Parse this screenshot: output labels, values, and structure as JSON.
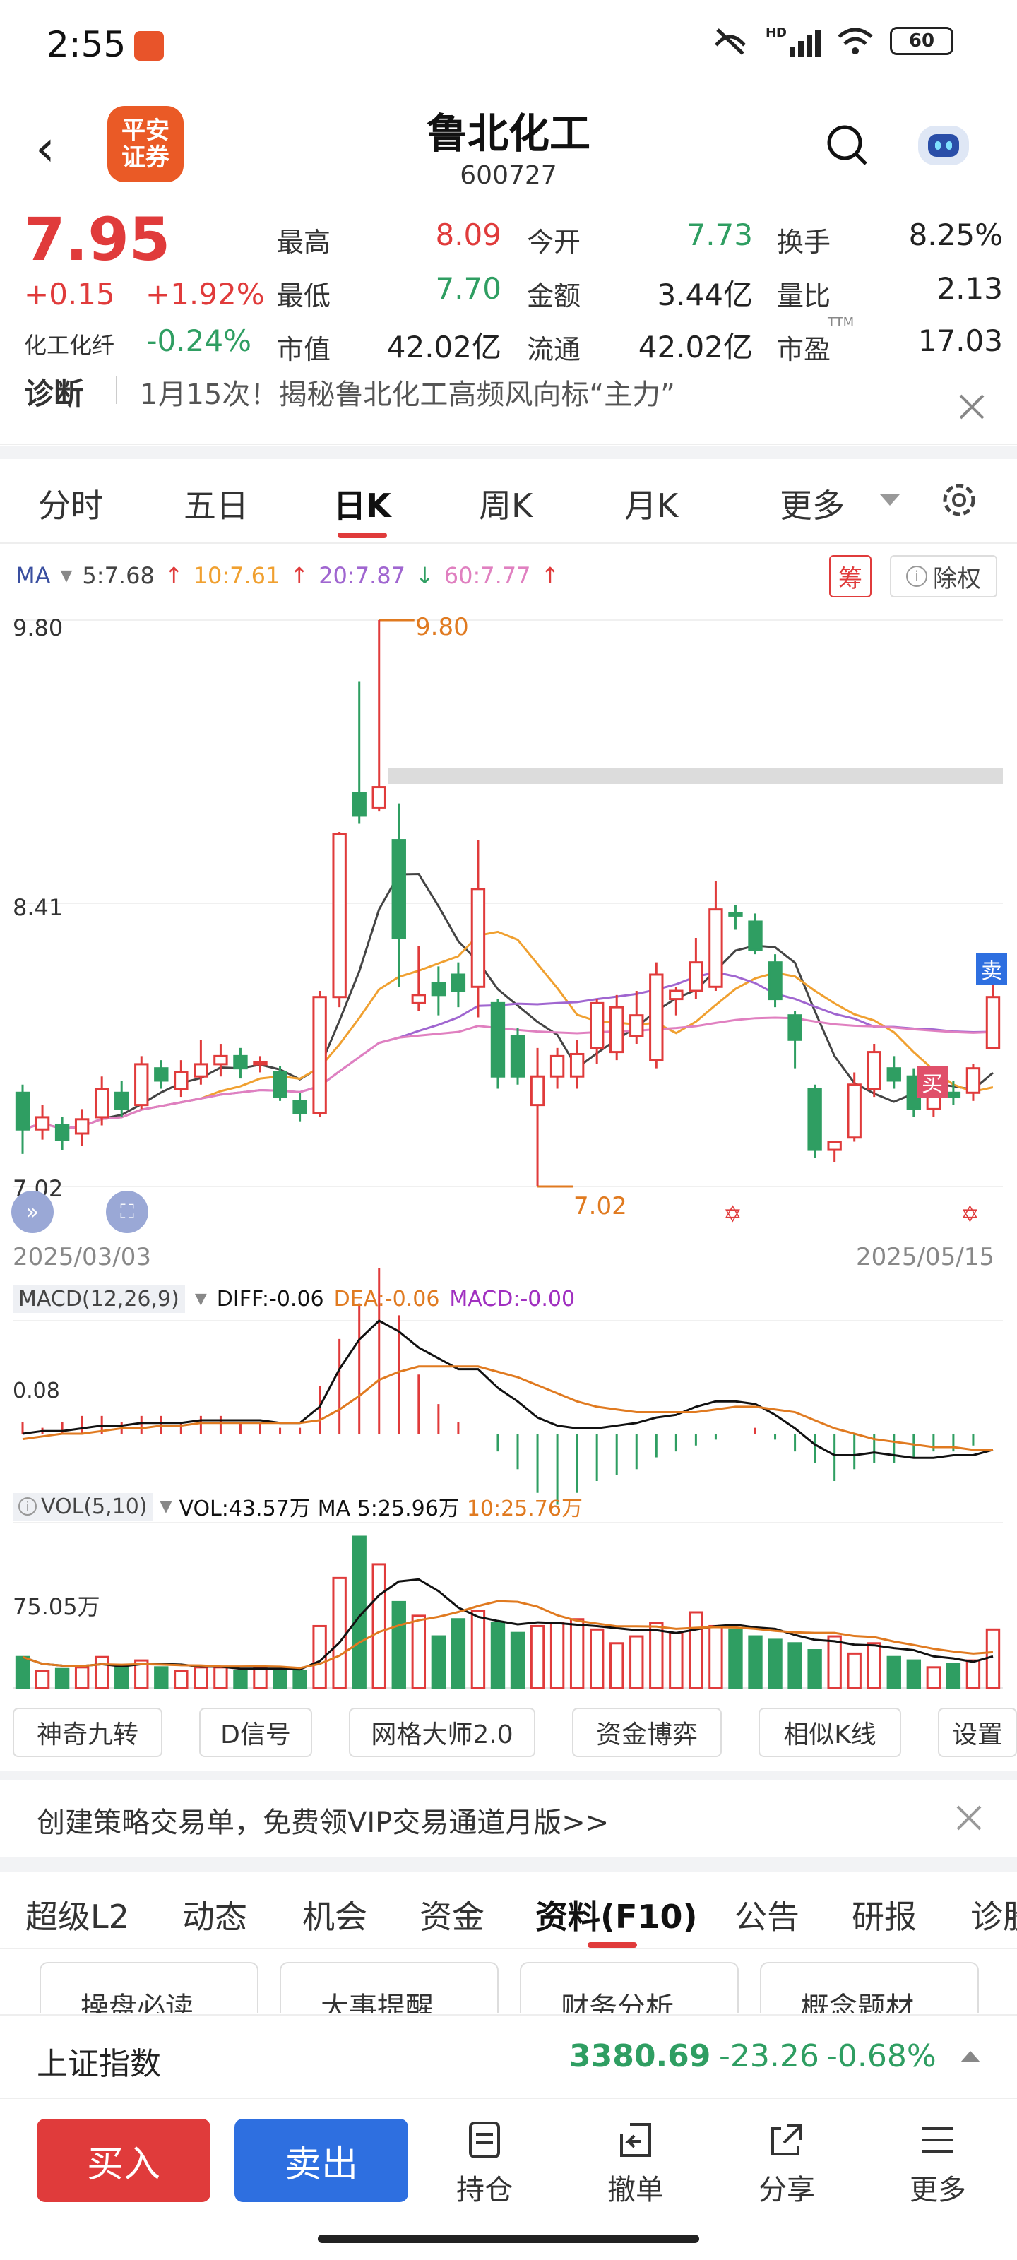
{
  "status": {
    "time": "2:55",
    "signal": "HD",
    "battery": "60"
  },
  "header": {
    "title": "鲁北化工",
    "code": "600727",
    "logo_line1": "平安",
    "logo_line2": "证券"
  },
  "quote": {
    "price": "7.95",
    "change": "+0.15",
    "change_pct": "+1.92%",
    "sector_name": "化工化纤",
    "sector_pct": "-0.24%",
    "high_label": "最高",
    "high": "8.09",
    "low_label": "最低",
    "low": "7.70",
    "mktcap_label": "市值",
    "mktcap": "42.02亿",
    "open_label": "今开",
    "open": "7.73",
    "amount_label": "金额",
    "amount": "3.44亿",
    "float_label": "流通",
    "float": "42.02亿",
    "turnover_label": "换手",
    "turnover": "8.25%",
    "volratio_label": "量比",
    "volratio": "2.13",
    "pe_label": "市盈",
    "pe_sup": "TTM",
    "pe": "17.03"
  },
  "diagnosis": {
    "label": "诊断",
    "text": "1月15次！揭秘鲁北化工高频风向标“主力”"
  },
  "tabs": [
    "分时",
    "五日",
    "日K",
    "周K",
    "月K",
    "更多"
  ],
  "active_tab": 2,
  "chart_data": [
    {
      "type": "candlestick",
      "ma_label": "MA",
      "ma_legend": [
        "5:7.68",
        "10:7.61",
        "20:7.87",
        "60:7.77"
      ],
      "ma_colors": [
        "#444444",
        "#f0a030",
        "#a066d0",
        "#e080c0"
      ],
      "y_ticks": [
        "9.80",
        "8.41",
        "7.02"
      ],
      "high_mark": "9.80",
      "low_mark": "7.02",
      "x_start": "2025/03/03",
      "x_end": "2025/05/15",
      "badge_chou": "筹",
      "badge_chuquan": "除权",
      "buy_mark": "买",
      "sell_mark": "卖",
      "ylim": [
        7.02,
        9.8
      ],
      "candles": [
        [
          7.48,
          7.3,
          7.52,
          7.18
        ],
        [
          7.3,
          7.36,
          7.42,
          7.25
        ],
        [
          7.32,
          7.25,
          7.36,
          7.2
        ],
        [
          7.28,
          7.35,
          7.4,
          7.22
        ],
        [
          7.36,
          7.5,
          7.56,
          7.32
        ],
        [
          7.48,
          7.4,
          7.54,
          7.36
        ],
        [
          7.42,
          7.62,
          7.66,
          7.4
        ],
        [
          7.6,
          7.54,
          7.64,
          7.5
        ],
        [
          7.5,
          7.58,
          7.64,
          7.46
        ],
        [
          7.56,
          7.62,
          7.74,
          7.52
        ],
        [
          7.62,
          7.66,
          7.72,
          7.56
        ],
        [
          7.66,
          7.6,
          7.7,
          7.55
        ],
        [
          7.62,
          7.63,
          7.66,
          7.58
        ],
        [
          7.58,
          7.46,
          7.61,
          7.44
        ],
        [
          7.44,
          7.38,
          7.48,
          7.34
        ],
        [
          7.38,
          7.95,
          7.98,
          7.36
        ],
        [
          7.95,
          8.75,
          8.76,
          7.9
        ],
        [
          8.95,
          8.84,
          9.5,
          8.8
        ],
        [
          8.88,
          8.98,
          9.8,
          8.86
        ],
        [
          8.72,
          8.24,
          8.9,
          8.0
        ],
        [
          7.92,
          7.96,
          8.2,
          7.88
        ],
        [
          8.02,
          7.96,
          8.1,
          7.86
        ],
        [
          8.06,
          7.98,
          8.12,
          7.9
        ],
        [
          8.0,
          8.48,
          8.72,
          7.85
        ],
        [
          7.92,
          7.56,
          7.94,
          7.5
        ],
        [
          7.76,
          7.56,
          7.8,
          7.52
        ],
        [
          7.42,
          7.56,
          7.7,
          7.02
        ],
        [
          7.56,
          7.66,
          7.7,
          7.5
        ],
        [
          7.56,
          7.67,
          7.74,
          7.5
        ],
        [
          7.7,
          7.92,
          7.94,
          7.62
        ],
        [
          7.68,
          7.9,
          7.96,
          7.64
        ],
        [
          7.76,
          7.86,
          7.98,
          7.72
        ],
        [
          7.64,
          8.06,
          8.12,
          7.6
        ],
        [
          7.94,
          7.98,
          8.0,
          7.86
        ],
        [
          7.98,
          8.12,
          8.24,
          7.94
        ],
        [
          8.0,
          8.38,
          8.52,
          7.98
        ],
        [
          8.36,
          8.35,
          8.4,
          8.28
        ],
        [
          8.32,
          8.18,
          8.36,
          8.16
        ],
        [
          8.12,
          7.94,
          8.16,
          7.9
        ],
        [
          7.86,
          7.74,
          7.88,
          7.6
        ],
        [
          7.5,
          7.2,
          7.52,
          7.16
        ],
        [
          7.2,
          7.24,
          7.22,
          7.14
        ],
        [
          7.26,
          7.52,
          7.58,
          7.24
        ],
        [
          7.5,
          7.68,
          7.72,
          7.46
        ],
        [
          7.6,
          7.54,
          7.66,
          7.5
        ],
        [
          7.56,
          7.4,
          7.6,
          7.36
        ],
        [
          7.4,
          7.48,
          7.52,
          7.36
        ],
        [
          7.48,
          7.46,
          7.54,
          7.42
        ],
        [
          7.48,
          7.6,
          7.62,
          7.44
        ],
        [
          7.7,
          7.95,
          8.09,
          7.7
        ]
      ],
      "volume_legend": [
        "VOL(5,10)",
        "VOL:43.57万",
        "MA 5:25.96万",
        "10:25.76万"
      ],
      "volume_tick": "75.05万",
      "volumes": [
        18,
        10,
        11,
        12,
        18,
        12,
        16,
        12,
        10,
        12,
        12,
        10,
        12,
        10,
        10,
        36,
        64,
        88,
        72,
        50,
        42,
        30,
        40,
        45,
        38,
        32,
        36,
        38,
        40,
        34,
        26,
        30,
        38,
        32,
        44,
        36,
        34,
        30,
        28,
        26,
        22,
        30,
        20,
        26,
        18,
        16,
        12,
        14,
        16,
        34
      ],
      "macd_legend": [
        "MACD(12,26,9)",
        "DIFF:-0.06",
        "DEA:-0.06",
        "MACD:-0.00"
      ],
      "macd_tick": "0.08",
      "macd_hist": [
        0.02,
        0.01,
        0.02,
        0.03,
        0.03,
        0.02,
        0.03,
        0.03,
        0.02,
        0.03,
        0.03,
        0.02,
        0.02,
        0.01,
        0.01,
        0.08,
        0.16,
        0.22,
        0.28,
        0.2,
        0.1,
        0.05,
        0.02,
        0.0,
        -0.03,
        -0.06,
        -0.1,
        -0.12,
        -0.1,
        -0.08,
        -0.07,
        -0.06,
        -0.04,
        -0.03,
        -0.02,
        -0.01,
        0.0,
        0.01,
        -0.01,
        -0.03,
        -0.05,
        -0.08,
        -0.06,
        -0.05,
        -0.05,
        -0.04,
        -0.03,
        -0.03,
        -0.02,
        -0.0
      ],
      "diff": [
        0.0,
        0.01,
        0.01,
        0.02,
        0.03,
        0.03,
        0.04,
        0.04,
        0.04,
        0.05,
        0.05,
        0.05,
        0.05,
        0.04,
        0.04,
        0.1,
        0.24,
        0.35,
        0.42,
        0.38,
        0.32,
        0.28,
        0.24,
        0.24,
        0.17,
        0.12,
        0.06,
        0.03,
        0.02,
        0.02,
        0.03,
        0.04,
        0.06,
        0.07,
        0.1,
        0.12,
        0.12,
        0.11,
        0.07,
        0.02,
        -0.04,
        -0.08,
        -0.08,
        -0.07,
        -0.08,
        -0.09,
        -0.09,
        -0.08,
        -0.08,
        -0.06
      ],
      "dea": [
        -0.02,
        -0.01,
        0.0,
        0.0,
        0.01,
        0.02,
        0.02,
        0.03,
        0.03,
        0.04,
        0.04,
        0.04,
        0.04,
        0.04,
        0.04,
        0.05,
        0.09,
        0.14,
        0.2,
        0.23,
        0.25,
        0.25,
        0.25,
        0.25,
        0.23,
        0.21,
        0.18,
        0.15,
        0.12,
        0.1,
        0.09,
        0.08,
        0.08,
        0.08,
        0.08,
        0.09,
        0.1,
        0.1,
        0.09,
        0.08,
        0.05,
        0.02,
        0.0,
        -0.02,
        -0.03,
        -0.04,
        -0.05,
        -0.05,
        -0.06,
        -0.06
      ]
    }
  ],
  "toolbar": [
    "神奇九转",
    "D信号",
    "网格大师2.0",
    "资金博弈",
    "相似K线",
    "设置"
  ],
  "banner": {
    "text": "创建策略交易单，免费领VIP交易通道月版>>"
  },
  "f10_tabs": [
    "超级L2",
    "动态",
    "机会",
    "资金",
    "资料(F10)",
    "公告",
    "研报",
    "诊股"
  ],
  "f10_active": 4,
  "sub_cards": [
    "操盘必读",
    "大事提醒",
    "财务分析",
    "概念题材"
  ],
  "index": {
    "name": "上证指数",
    "value": "3380.69",
    "change": "-23.26",
    "pct": "-0.68%"
  },
  "bottom": {
    "buy": "买入",
    "sell": "卖出",
    "nav": [
      "持仓",
      "撤单",
      "分享",
      "更多"
    ]
  },
  "colors": {
    "up": "#e03b3b",
    "down": "#2f9e62",
    "sell_btn": "#2e6fe0"
  }
}
